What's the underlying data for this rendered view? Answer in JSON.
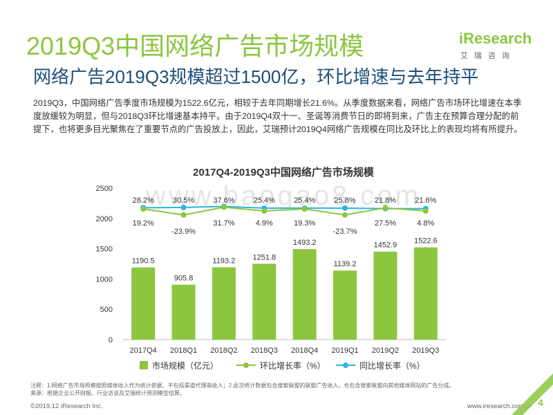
{
  "header": {
    "title": "2019Q3中国网络广告市场规模",
    "subtitle": "网络广告2019Q3规模超过1500亿，环比增速与去年持平"
  },
  "logo": {
    "brand": "iResearch",
    "tagline": "艾瑞咨询"
  },
  "description": "2019Q3，中国网络广告季度市场规模为1522.6亿元，相较于去年同期增长21.6%。从季度数据来看，网络广告市场环比增速在本季度放缓较为明显，但与2018Q3环比增速基本持平。由于2019Q4双十一、圣诞等消费节日的即将到来，广告主在预算合理分配的前提下，也将更多目光聚焦在了重要节点的广告投放上，因此，艾瑞预计2019Q4网络广告规模在同比及环比上的表现均将有所提升。",
  "watermark": "www.baogao8.com",
  "chart_data": {
    "type": "bar",
    "title": "2017Q4-2019Q3中国网络广告市场规模",
    "categories": [
      "2017Q4",
      "2018Q1",
      "2018Q2",
      "2018Q3",
      "2018Q4",
      "2019Q1",
      "2019Q2",
      "2019Q3"
    ],
    "ylim": [
      0,
      2500
    ],
    "yticks": [
      0,
      500,
      1000,
      1500,
      2000,
      2500
    ],
    "series": [
      {
        "name": "市场规模（亿元）",
        "kind": "bar",
        "color": "#8cc63f",
        "values": [
          1190.5,
          905.8,
          1193.2,
          1251.8,
          1493.2,
          1139.2,
          1452.9,
          1522.6
        ],
        "labels": [
          "1190.5",
          "905.8",
          "1193.2",
          "1251.8",
          "1493.2",
          "1139.2",
          "1452.9",
          "1522.6"
        ]
      },
      {
        "name": "环比增长率（%）",
        "kind": "line",
        "color": "#8cc63f",
        "values": [
          19.2,
          -23.9,
          31.7,
          4.9,
          19.3,
          -23.7,
          27.5,
          4.8
        ],
        "labels": [
          "19.2%",
          "-23.9%",
          "31.7%",
          "4.9%",
          "19.3%",
          "-23.7%",
          "27.5%",
          "4.8%"
        ]
      },
      {
        "name": "同比增长率（%）",
        "kind": "line",
        "color": "#29b6e0",
        "values": [
          28.2,
          30.5,
          37.6,
          25.4,
          25.4,
          25.8,
          21.8,
          21.6
        ],
        "labels": [
          "28.2%",
          "30.5%",
          "37.6%",
          "25.4%",
          "25.4%",
          "25.8%",
          "21.8%",
          "21.6%"
        ]
      }
    ]
  },
  "notes": {
    "note": "注释：1.网络广告市场规模按照媒体收入作为统计依据，不包括渠道代理商收入；2.此次统计数据包含搜索联盟的联盟广告收入，也包含搜索联盟向其他媒体网站的广告分成。",
    "source": "来源：根据企业公开财报、行业访谈及艾瑞统计预测模型估算。"
  },
  "footer": {
    "copyright": "©2019.12 iResearch Inc.",
    "url": "www.iresearch.com.cn",
    "page": "4"
  }
}
